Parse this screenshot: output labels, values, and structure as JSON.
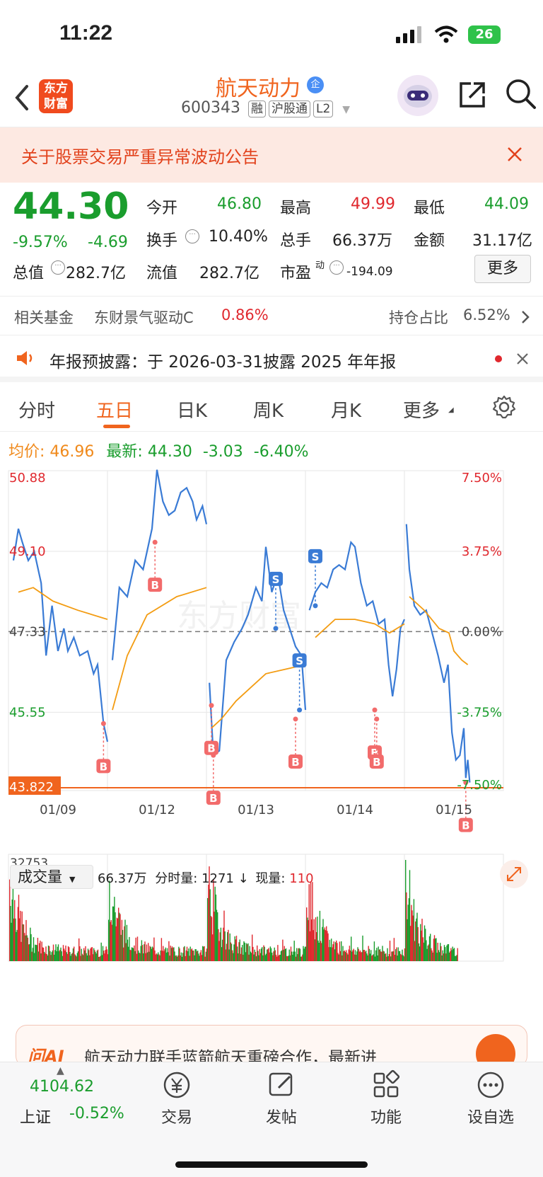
{
  "status_bar": {
    "time": "11:22",
    "battery": "26"
  },
  "header": {
    "logo_text": "东方财富",
    "stock_name": "航天动力",
    "stock_code": "600343",
    "badges": [
      "融",
      "沪股通",
      "L2"
    ],
    "enterprise_mark": "企"
  },
  "banner": {
    "text": "关于股票交易严重异常波动公告"
  },
  "quote": {
    "price": "44.30",
    "change_pct": "-9.57%",
    "change_abs": "-4.69",
    "open_label": "今开",
    "open": "46.80",
    "high_label": "最高",
    "high": "49.99",
    "low_label": "最低",
    "low": "44.09",
    "turnover_label": "换手",
    "turnover": "10.40%",
    "volume_label": "总手",
    "volume": "66.37万",
    "amount_label": "金额",
    "amount": "31.17亿",
    "mktcap_label": "总值",
    "mktcap": "282.7亿",
    "float_label": "流值",
    "float_cap": "282.7亿",
    "pe_label": "市盈",
    "pe_sup": "动",
    "pe": "-194.09",
    "more_button": "更多"
  },
  "fund": {
    "label": "相关基金",
    "name": "东财景气驱动C",
    "change": "0.86%",
    "holding_label": "持仓占比",
    "holding": "6.52%"
  },
  "notice": {
    "text": "年报预披露：于 2026-03-31披露 2025 年年报"
  },
  "tabs": [
    {
      "label": "分时",
      "active": false
    },
    {
      "label": "五日",
      "active": true
    },
    {
      "label": "日K",
      "active": false
    },
    {
      "label": "周K",
      "active": false
    },
    {
      "label": "月K",
      "active": false
    },
    {
      "label": "更多",
      "active": false
    }
  ],
  "legend": {
    "avg_label": "均价:",
    "avg": "46.96",
    "latest_label": "最新:",
    "latest": "44.30",
    "chg": "-3.03",
    "chg_pct": "-6.40%"
  },
  "chart_data": {
    "type": "line",
    "title": "",
    "x_labels": [
      "01/09",
      "01/12",
      "01/13",
      "01/14",
      "01/15"
    ],
    "y_left_ticks": [
      "50.88",
      "49.10",
      "47.33",
      "45.55",
      "43.822"
    ],
    "y_right_ticks": [
      "7.50%",
      "3.75%",
      "0.00%",
      "-3.75%",
      "-7.50%"
    ],
    "ylim": [
      43.822,
      50.88
    ],
    "reference_price": 47.33,
    "series": [
      {
        "key": "price",
        "color": "#3a7bd5",
        "points": [
          [
            0,
            48.6
          ],
          [
            0.05,
            48.9
          ],
          [
            0.1,
            49.6
          ],
          [
            0.14,
            49.3
          ],
          [
            0.2,
            48.9
          ],
          [
            0.26,
            49.1
          ],
          [
            0.33,
            48.4
          ],
          [
            0.38,
            46.8
          ],
          [
            0.44,
            47.9
          ],
          [
            0.5,
            46.9
          ],
          [
            0.56,
            47.4
          ],
          [
            0.6,
            46.9
          ],
          [
            0.66,
            47.2
          ],
          [
            0.72,
            46.8
          ],
          [
            0.8,
            46.9
          ],
          [
            0.86,
            46.4
          ],
          [
            0.9,
            46.6
          ],
          [
            0.96,
            45.3
          ],
          [
            1,
            44.9
          ],
          [
            1.05,
            46.7
          ],
          [
            1.12,
            48.3
          ],
          [
            1.2,
            48.1
          ],
          [
            1.28,
            48.9
          ],
          [
            1.36,
            48.7
          ],
          [
            1.45,
            49.6
          ],
          [
            1.5,
            50.9
          ],
          [
            1.56,
            50.2
          ],
          [
            1.62,
            49.9
          ],
          [
            1.68,
            50.0
          ],
          [
            1.74,
            50.4
          ],
          [
            1.8,
            50.5
          ],
          [
            1.86,
            50.2
          ],
          [
            1.9,
            49.8
          ],
          [
            1.96,
            50.1
          ],
          [
            2,
            49.7
          ],
          [
            2.03,
            46.2
          ],
          [
            2.07,
            44.6
          ],
          [
            2.13,
            44.7
          ],
          [
            2.2,
            46.7
          ],
          [
            2.28,
            47.1
          ],
          [
            2.36,
            47.4
          ],
          [
            2.42,
            47.7
          ],
          [
            2.5,
            48.3
          ],
          [
            2.56,
            48.0
          ],
          [
            2.6,
            49.2
          ],
          [
            2.66,
            48.2
          ],
          [
            2.72,
            48.6
          ],
          [
            2.78,
            47.8
          ],
          [
            2.84,
            47.4
          ],
          [
            2.9,
            47.0
          ],
          [
            2.96,
            46.8
          ],
          [
            3,
            45.6
          ],
          [
            3.04,
            47.8
          ],
          [
            3.1,
            48.2
          ],
          [
            3.16,
            48.4
          ],
          [
            3.22,
            48.3
          ],
          [
            3.28,
            48.7
          ],
          [
            3.34,
            48.8
          ],
          [
            3.4,
            48.7
          ],
          [
            3.46,
            49.3
          ],
          [
            3.5,
            49.2
          ],
          [
            3.56,
            48.4
          ],
          [
            3.62,
            47.9
          ],
          [
            3.68,
            48.0
          ],
          [
            3.74,
            47.5
          ],
          [
            3.8,
            47.6
          ],
          [
            3.84,
            46.6
          ],
          [
            3.88,
            45.9
          ],
          [
            3.92,
            46.5
          ],
          [
            3.96,
            47.4
          ],
          [
            4,
            47.6
          ],
          [
            4.02,
            49.7
          ],
          [
            4.05,
            48.7
          ],
          [
            4.1,
            47.9
          ],
          [
            4.16,
            47.7
          ],
          [
            4.22,
            47.8
          ],
          [
            4.28,
            47.3
          ],
          [
            4.34,
            46.8
          ],
          [
            4.4,
            46.2
          ],
          [
            4.44,
            46.6
          ],
          [
            4.48,
            45.1
          ],
          [
            4.52,
            44.5
          ],
          [
            4.56,
            44.6
          ],
          [
            4.6,
            45.2
          ],
          [
            4.62,
            44.1
          ],
          [
            4.64,
            44.5
          ],
          [
            4.66,
            44.0
          ]
        ]
      },
      {
        "key": "avg",
        "color": "#f39c12",
        "points": [
          [
            0,
            47.7
          ],
          [
            0.1,
            48.2
          ],
          [
            0.25,
            48.3
          ],
          [
            0.45,
            48.0
          ],
          [
            0.7,
            47.8
          ],
          [
            1,
            47.6
          ],
          [
            1.05,
            45.6
          ],
          [
            1.2,
            46.8
          ],
          [
            1.4,
            47.7
          ],
          [
            1.7,
            48.1
          ],
          [
            2,
            48.3
          ],
          [
            2.05,
            45.2
          ],
          [
            2.15,
            45.4
          ],
          [
            2.3,
            45.8
          ],
          [
            2.45,
            46.1
          ],
          [
            2.6,
            46.4
          ],
          [
            2.8,
            46.5
          ],
          [
            3,
            46.6
          ],
          [
            3.1,
            47.2
          ],
          [
            3.3,
            47.6
          ],
          [
            3.5,
            47.6
          ],
          [
            3.7,
            47.5
          ],
          [
            3.85,
            47.3
          ],
          [
            4,
            47.5
          ],
          [
            4.05,
            48.1
          ],
          [
            4.2,
            47.8
          ],
          [
            4.35,
            47.4
          ],
          [
            4.45,
            47.3
          ],
          [
            4.5,
            46.9
          ],
          [
            4.58,
            46.7
          ],
          [
            4.64,
            46.6
          ]
        ]
      }
    ],
    "markers": [
      {
        "type": "B",
        "x": 0.96,
        "y": 45.3
      },
      {
        "type": "B",
        "x": 1.48,
        "y": 49.3
      },
      {
        "type": "B",
        "x": 2.07,
        "y": 44.6
      },
      {
        "type": "B",
        "x": 2.05,
        "y": 45.7
      },
      {
        "type": "B",
        "x": 2.9,
        "y": 45.4
      },
      {
        "type": "S",
        "x": 2.7,
        "y": 47.4
      },
      {
        "type": "S",
        "x": 3.1,
        "y": 47.9
      },
      {
        "type": "S",
        "x": 2.94,
        "y": 45.6
      },
      {
        "type": "B",
        "x": 3.7,
        "y": 45.6
      },
      {
        "type": "B",
        "x": 3.72,
        "y": 45.4
      },
      {
        "type": "B",
        "x": 4.62,
        "y": 44.0
      }
    ]
  },
  "volume": {
    "selector": "成交量",
    "total": "66.37万",
    "tick_label": "分时量:",
    "tick": "1271",
    "now_label": "现量:",
    "now": "110",
    "max": "32753"
  },
  "ad": {
    "logo": "问AI",
    "text": "航天动力联手蓝箭航天重磅合作，最新进"
  },
  "bottom": {
    "index_value": "4104.62",
    "index_name": "上证",
    "index_change": "-0.52%",
    "items": [
      "交易",
      "发帖",
      "功能",
      "设自选"
    ]
  }
}
